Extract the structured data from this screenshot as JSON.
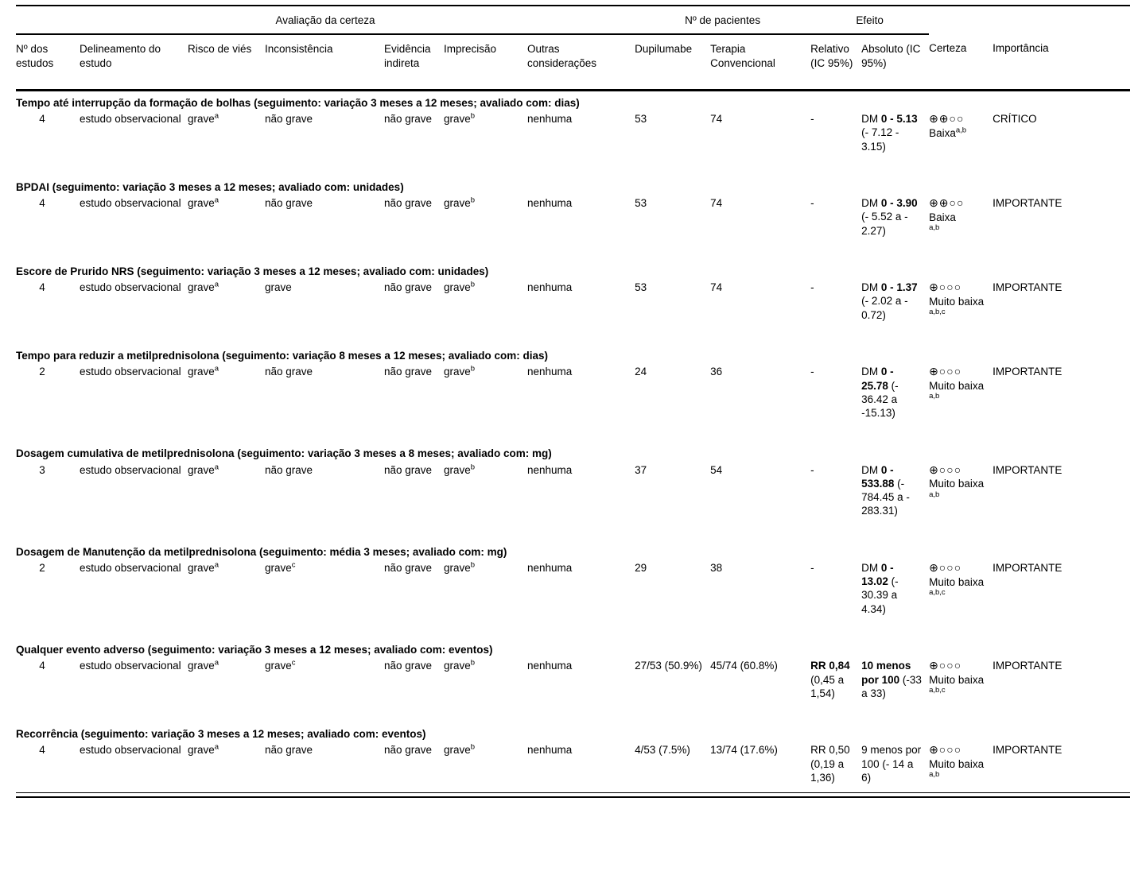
{
  "table": {
    "group_headers": {
      "certainty": "Avaliação da certeza",
      "patients": "Nº de pacientes",
      "effect": "Efeito"
    },
    "columns": [
      "Nº dos estudos",
      "Delineamento do estudo",
      "Risco de viés",
      "Inconsistência",
      "Evidência indireta",
      "Imprecisão",
      "Outras considerações",
      "Dupilumabe",
      "Terapia Convencional",
      "Relativo (IC 95%)",
      "Absoluto (IC 95%)",
      "Certeza",
      "Importância"
    ],
    "certainty_levels": {
      "low_symbols": "⊕⊕○○",
      "very_low_symbols": "⊕○○○"
    },
    "sections": [
      {
        "title": "Tempo até interrupção da formação de bolhas (seguimento: variação 3 meses a 12 meses; avaliado com: dias)",
        "row": {
          "n_studies": "4",
          "design": "estudo observacional",
          "risk_of_bias": {
            "text": "grave",
            "sup": "a"
          },
          "inconsistency": {
            "text": "não grave",
            "sup": ""
          },
          "indirectness": {
            "text": "não grave",
            "sup": ""
          },
          "imprecision": {
            "text": "grave",
            "sup": "b"
          },
          "other": "nenhuma",
          "dupilumab": "53",
          "conventional": "74",
          "relative": {
            "pre": "",
            "bold": "",
            "rest": "-"
          },
          "absolute": {
            "pre": "DM ",
            "bold": "0 - 5.13",
            "rest": " (- 7.12 - 3.15)"
          },
          "certainty": {
            "symbols": "⊕⊕○○",
            "label": "Baixa",
            "sup": "a,b",
            "sup_inline": true
          },
          "importance": "CRÍTICO"
        }
      },
      {
        "title": "BPDAI (seguimento: variação 3 meses a 12 meses; avaliado com: unidades)",
        "row": {
          "n_studies": "4",
          "design": "estudo observacional",
          "risk_of_bias": {
            "text": "grave",
            "sup": "a"
          },
          "inconsistency": {
            "text": "não grave",
            "sup": ""
          },
          "indirectness": {
            "text": "não grave",
            "sup": ""
          },
          "imprecision": {
            "text": "grave",
            "sup": "b"
          },
          "other": "nenhuma",
          "dupilumab": "53",
          "conventional": "74",
          "relative": {
            "pre": "",
            "bold": "",
            "rest": "-"
          },
          "absolute": {
            "pre": "DM ",
            "bold": "0 - 3.90",
            "rest": " (- 5.52 a - 2.27)"
          },
          "certainty": {
            "symbols": "⊕⊕○○",
            "label": "Baixa",
            "sup": "a,b",
            "sup_inline": false
          },
          "importance": "IMPORTANTE"
        }
      },
      {
        "title": "Escore de Prurido NRS (seguimento: variação 3 meses a 12 meses; avaliado com: unidades)",
        "row": {
          "n_studies": "4",
          "design": "estudo observacional",
          "risk_of_bias": {
            "text": "grave",
            "sup": "a"
          },
          "inconsistency": {
            "text": "grave",
            "sup": ""
          },
          "indirectness": {
            "text": "não grave",
            "sup": ""
          },
          "imprecision": {
            "text": "grave",
            "sup": "b"
          },
          "other": "nenhuma",
          "dupilumab": "53",
          "conventional": "74",
          "relative": {
            "pre": "",
            "bold": "",
            "rest": "-"
          },
          "absolute": {
            "pre": "DM ",
            "bold": "0 - 1.37",
            "rest": " (- 2.02 a - 0.72)"
          },
          "certainty": {
            "symbols": "⊕○○○",
            "label": "Muito baixa",
            "sup": "a,b,c",
            "sup_inline": false
          },
          "importance": "IMPORTANTE"
        }
      },
      {
        "title": "Tempo para reduzir a metilprednisolona (seguimento: variação 8 meses a 12 meses; avaliado com: dias)",
        "row": {
          "n_studies": "2",
          "design": "estudo observacional",
          "risk_of_bias": {
            "text": "grave",
            "sup": "a"
          },
          "inconsistency": {
            "text": "não grave",
            "sup": ""
          },
          "indirectness": {
            "text": "não grave",
            "sup": ""
          },
          "imprecision": {
            "text": "grave",
            "sup": "b"
          },
          "other": "nenhuma",
          "dupilumab": "24",
          "conventional": "36",
          "relative": {
            "pre": "",
            "bold": "",
            "rest": "-"
          },
          "absolute": {
            "pre": "DM ",
            "bold": "0 - 25.78",
            "rest": " (- 36.42 a -15.13)"
          },
          "certainty": {
            "symbols": "⊕○○○",
            "label": "Muito baixa",
            "sup": "a,b",
            "sup_inline": false
          },
          "importance": "IMPORTANTE"
        }
      },
      {
        "title": "Dosagem cumulativa de metilprednisolona (seguimento: variação 3 meses a 8 meses; avaliado com: mg)",
        "row": {
          "n_studies": "3",
          "design": "estudo observacional",
          "risk_of_bias": {
            "text": "grave",
            "sup": "a"
          },
          "inconsistency": {
            "text": "não grave",
            "sup": ""
          },
          "indirectness": {
            "text": "não grave",
            "sup": ""
          },
          "imprecision": {
            "text": "grave",
            "sup": "b"
          },
          "other": "nenhuma",
          "dupilumab": "37",
          "conventional": "54",
          "relative": {
            "pre": "",
            "bold": "",
            "rest": "-"
          },
          "absolute": {
            "pre": "DM ",
            "bold": "0 - 533.88",
            "rest": " (- 784.45 a - 283.31)"
          },
          "certainty": {
            "symbols": "⊕○○○",
            "label": "Muito baixa",
            "sup": "a,b",
            "sup_inline": false
          },
          "importance": "IMPORTANTE"
        }
      },
      {
        "title": "Dosagem de Manutenção da metilprednisolona (seguimento: média 3 meses; avaliado com: mg)",
        "row": {
          "n_studies": "2",
          "design": "estudo observacional",
          "risk_of_bias": {
            "text": "grave",
            "sup": "a"
          },
          "inconsistency": {
            "text": "grave",
            "sup": "c"
          },
          "indirectness": {
            "text": "não grave",
            "sup": ""
          },
          "imprecision": {
            "text": "grave",
            "sup": "b"
          },
          "other": "nenhuma",
          "dupilumab": "29",
          "conventional": "38",
          "relative": {
            "pre": "",
            "bold": "",
            "rest": "-"
          },
          "absolute": {
            "pre": "DM ",
            "bold": "0 - 13.02",
            "rest": " (- 30.39 a 4.34)"
          },
          "certainty": {
            "symbols": "⊕○○○",
            "label": "Muito baixa",
            "sup": "a,b,c",
            "sup_inline": false
          },
          "importance": "IMPORTANTE"
        }
      },
      {
        "title": "Qualquer evento adverso (seguimento: variação 3 meses a 12 meses; avaliado com: eventos)",
        "row": {
          "n_studies": "4",
          "design": "estudo observacional",
          "risk_of_bias": {
            "text": "grave",
            "sup": "a"
          },
          "inconsistency": {
            "text": "grave",
            "sup": "c"
          },
          "indirectness": {
            "text": "não grave",
            "sup": ""
          },
          "imprecision": {
            "text": "grave",
            "sup": "b"
          },
          "other": "nenhuma",
          "dupilumab": "27/53 (50.9%)",
          "conventional": "45/74 (60.8%)",
          "relative": {
            "pre": "",
            "bold": "RR 0,84",
            "rest": " (0,45 a 1,54)"
          },
          "absolute": {
            "pre": "",
            "bold": "10 menos por 100",
            "rest": " (-33 a 33)"
          },
          "certainty": {
            "symbols": "⊕○○○",
            "label": "Muito baixa",
            "sup": "a,b,c",
            "sup_inline": false
          },
          "importance": "IMPORTANTE"
        }
      },
      {
        "title": "Recorrência (seguimento: variação 3 meses a 12 meses; avaliado com: eventos)",
        "row": {
          "n_studies": "4",
          "design": "estudo observacional",
          "risk_of_bias": {
            "text": "grave",
            "sup": "a"
          },
          "inconsistency": {
            "text": "não grave",
            "sup": ""
          },
          "indirectness": {
            "text": "não grave",
            "sup": ""
          },
          "imprecision": {
            "text": "grave",
            "sup": "b"
          },
          "other": "nenhuma",
          "dupilumab": "4/53 (7.5%)",
          "conventional": "13/74 (17.6%)",
          "relative": {
            "pre": "",
            "bold": "",
            "rest": "RR 0,50 (0,19 a 1,36)"
          },
          "absolute": {
            "pre": "",
            "bold": "",
            "rest": "9 menos por 100 (- 14 a 6)"
          },
          "certainty": {
            "symbols": "⊕○○○",
            "label": "Muito baixa",
            "sup": "a,b",
            "sup_inline": false
          },
          "importance": "IMPORTANTE"
        }
      }
    ]
  }
}
